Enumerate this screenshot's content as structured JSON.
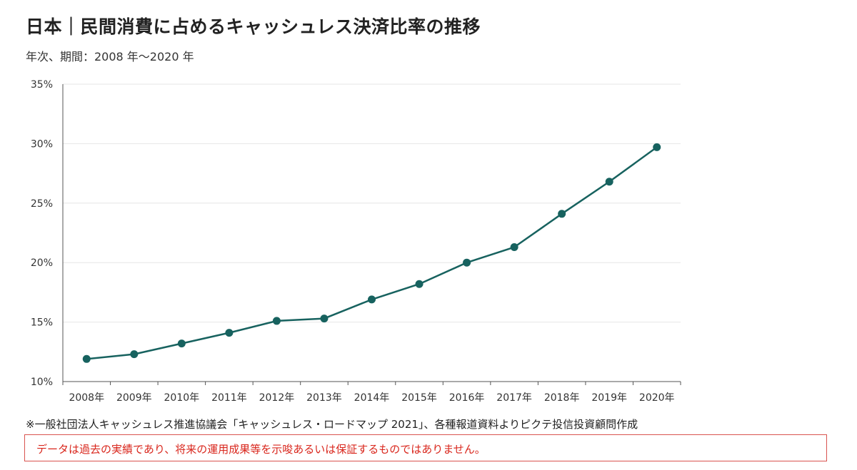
{
  "header": {
    "title": "日本｜民間消費に占めるキャッシュレス決済比率の推移",
    "subtitle": "年次、期間：2008 年～2020 年"
  },
  "footer": {
    "source": "※一般社団法人キャッシュレス推進協議会「キャッシュレス・ロードマップ 2021」、各種報道資料よりピクテ投信投資顧問作成",
    "disclaimer": "データは過去の実績であり、将来の運用成果等を示唆あるいは保証するものではありません。"
  },
  "colors": {
    "line": "#17625f",
    "grid": "#e6e6e6",
    "axis": "#555555",
    "disclaimer_border": "#d9534f",
    "disclaimer_text": "#d9261c"
  },
  "chart_data": {
    "type": "line",
    "categories": [
      "2008年",
      "2009年",
      "2010年",
      "2011年",
      "2012年",
      "2013年",
      "2014年",
      "2015年",
      "2016年",
      "2017年",
      "2018年",
      "2019年",
      "2020年"
    ],
    "series": [
      {
        "values": [
          11.9,
          12.3,
          13.2,
          14.1,
          15.1,
          15.3,
          16.9,
          18.2,
          20.0,
          21.3,
          24.1,
          26.8,
          29.7
        ]
      }
    ],
    "ylim": [
      10,
      35
    ],
    "yticks": [
      10,
      15,
      20,
      25,
      30,
      35
    ],
    "ytick_labels": [
      "10%",
      "15%",
      "20%",
      "25%",
      "30%",
      "35%"
    ],
    "grid": true,
    "legend": "none"
  }
}
